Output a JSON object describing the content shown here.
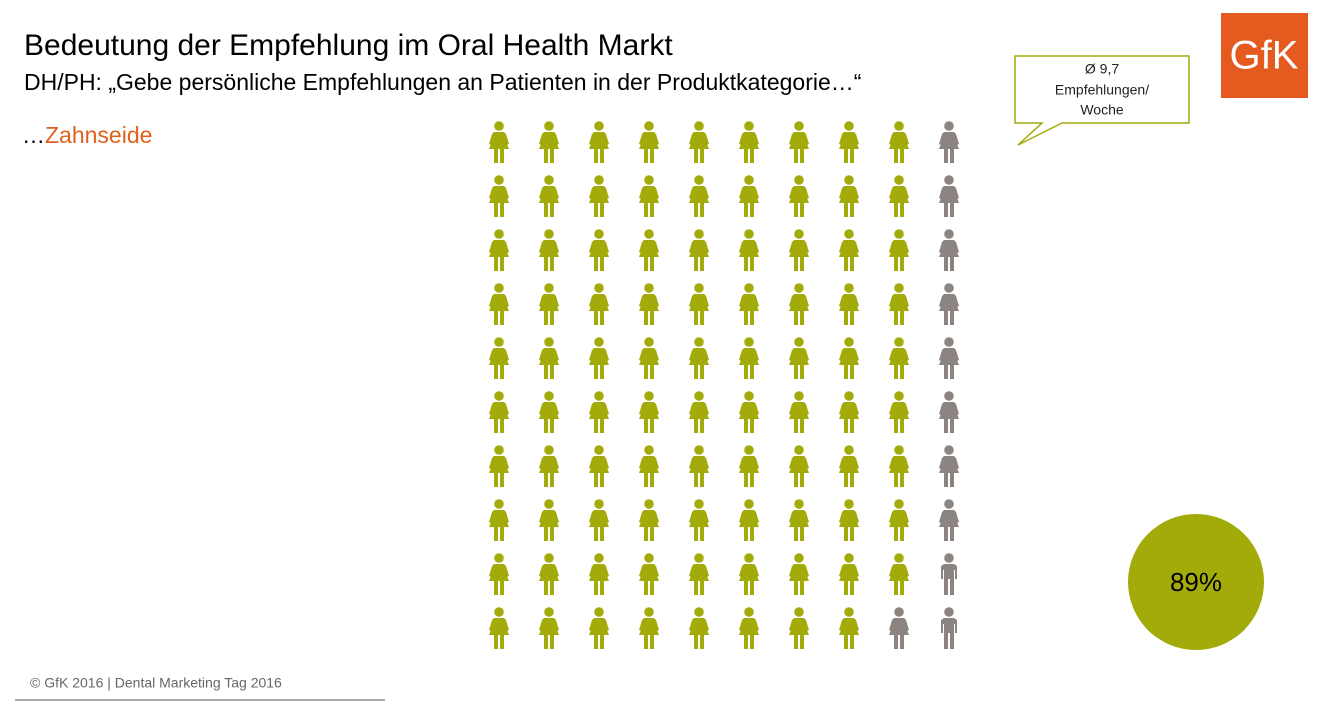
{
  "chart_data": {
    "type": "pictogram",
    "title": "Bedeutung der Empfehlung im Oral Health Markt",
    "subtitle": "DH/PH: „Gebe persönliche Empfehlungen an Patienten in der Produktkategorie…“",
    "category_prefix": "…",
    "category": "Zahnseide",
    "value": 89,
    "value_label": "89%",
    "color": "#a3ab0a",
    "rest_color": "#8c8480",
    "annotation": [
      "Ø 9,7",
      "Empfehlungen/",
      "Woche"
    ]
  },
  "logo": "GfK",
  "footer": "© GfK 2016 | Dental Marketing Tag 2016"
}
